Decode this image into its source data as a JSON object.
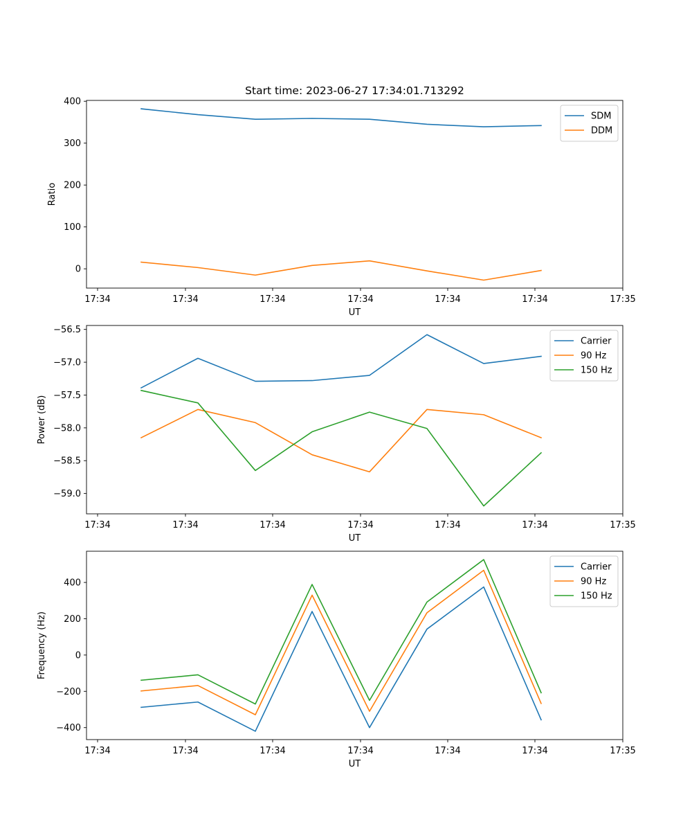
{
  "figure": {
    "title": "Start time: 2023-06-27 17:34:01.713292"
  },
  "chart_data": [
    {
      "type": "line",
      "ylabel": "Ratio",
      "xlabel": "UT",
      "xticks": [
        "17:34",
        "17:34",
        "17:34",
        "17:34",
        "17:34",
        "17:34",
        "17:35"
      ],
      "ylim": [
        -46,
        402
      ],
      "yticks": [
        0,
        100,
        200,
        300,
        400
      ],
      "ytick_labels": [
        "0",
        "100",
        "200",
        "300",
        "400"
      ],
      "legend_position": "upper-right",
      "series": [
        {
          "name": "SDM",
          "color": "#1f77b4",
          "values": [
            382,
            368,
            357,
            359,
            357,
            345,
            339,
            342
          ]
        },
        {
          "name": "DDM",
          "color": "#ff7f0e",
          "values": [
            16,
            3,
            -15,
            8,
            19,
            -5,
            -27,
            -4
          ]
        }
      ]
    },
    {
      "type": "line",
      "ylabel": "Power (dB)",
      "xlabel": "UT",
      "xticks": [
        "17:34",
        "17:34",
        "17:34",
        "17:34",
        "17:34",
        "17:34",
        "17:35"
      ],
      "ylim": [
        -59.31,
        -56.44
      ],
      "yticks": [
        -59.0,
        -58.5,
        -58.0,
        -57.5,
        -57.0,
        -56.5
      ],
      "ytick_labels": [
        "−59.0",
        "−58.5",
        "−58.0",
        "−57.5",
        "−57.0",
        "−56.5"
      ],
      "legend_position": "upper-right",
      "series": [
        {
          "name": "Carrier",
          "color": "#1f77b4",
          "values": [
            -57.39,
            -56.94,
            -57.29,
            -57.28,
            -57.2,
            -56.58,
            -57.02,
            -56.91
          ]
        },
        {
          "name": "90 Hz",
          "color": "#ff7f0e",
          "values": [
            -58.15,
            -57.72,
            -57.92,
            -58.41,
            -58.67,
            -57.72,
            -57.8,
            -58.15
          ]
        },
        {
          "name": "150 Hz",
          "color": "#2ca02c",
          "values": [
            -57.43,
            -57.62,
            -58.65,
            -58.06,
            -57.76,
            -58.01,
            -59.19,
            -58.38
          ]
        }
      ]
    },
    {
      "type": "line",
      "ylabel": "Frequency (Hz)",
      "xlabel": "UT",
      "xticks": [
        "17:34",
        "17:34",
        "17:34",
        "17:34",
        "17:34",
        "17:34",
        "17:35"
      ],
      "ylim": [
        -466,
        572
      ],
      "yticks": [
        -400,
        -200,
        0,
        200,
        400
      ],
      "ytick_labels": [
        "−400",
        "−200",
        "0",
        "200",
        "400"
      ],
      "legend_position": "upper-right",
      "series": [
        {
          "name": "Carrier",
          "color": "#1f77b4",
          "values": [
            -288,
            -259,
            -420,
            240,
            -400,
            143,
            375,
            -357
          ]
        },
        {
          "name": "90 Hz",
          "color": "#ff7f0e",
          "values": [
            -198,
            -168,
            -329,
            330,
            -310,
            233,
            467,
            -267
          ]
        },
        {
          "name": "150 Hz",
          "color": "#2ca02c",
          "values": [
            -139,
            -109,
            -270,
            389,
            -250,
            292,
            526,
            -208
          ]
        }
      ]
    }
  ]
}
